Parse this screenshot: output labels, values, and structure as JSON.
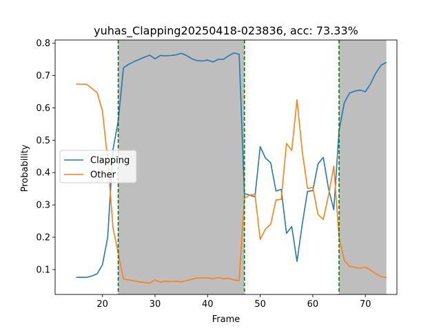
{
  "chart_data": {
    "type": "line",
    "title": "yuhas_Clapping20250418-023836,  acc: 73.33%",
    "xlabel": "Frame",
    "ylabel": "Probability",
    "xlim": [
      11,
      76
    ],
    "ylim": [
      0.023,
      0.81
    ],
    "xticks": [
      "20",
      "30",
      "40",
      "50",
      "60",
      "70"
    ],
    "yticks": [
      "0.1",
      "0.2",
      "0.3",
      "0.4",
      "0.5",
      "0.6",
      "0.7",
      "0.8"
    ],
    "legend_placement": "center-left",
    "shaded_regions": [
      [
        23,
        47
      ],
      [
        65,
        74
      ]
    ],
    "boundary_lines": [
      23,
      47,
      65
    ],
    "shade_color": "#bebebe",
    "boundary_color": "#007500",
    "x": [
      15,
      16,
      17,
      18,
      19,
      20,
      21,
      22,
      23,
      24,
      25,
      26,
      27,
      28,
      29,
      30,
      31,
      32,
      33,
      34,
      35,
      36,
      37,
      38,
      39,
      40,
      41,
      42,
      43,
      44,
      45,
      46,
      47,
      48,
      49,
      50,
      51,
      52,
      53,
      54,
      55,
      56,
      57,
      58,
      59,
      60,
      61,
      62,
      63,
      64,
      65,
      66,
      67,
      68,
      69,
      70,
      71,
      72,
      73,
      74
    ],
    "series": [
      {
        "name": "Clapping",
        "color": "#1f77b4",
        "values": [
          0.076,
          0.076,
          0.076,
          0.08,
          0.087,
          0.115,
          0.2,
          0.47,
          0.56,
          0.724,
          0.735,
          0.743,
          0.75,
          0.757,
          0.763,
          0.752,
          0.762,
          0.761,
          0.762,
          0.764,
          0.769,
          0.762,
          0.752,
          0.746,
          0.745,
          0.748,
          0.742,
          0.75,
          0.75,
          0.761,
          0.77,
          0.766,
          0.335,
          0.33,
          0.325,
          0.48,
          0.445,
          0.43,
          0.343,
          0.348,
          0.212,
          0.233,
          0.125,
          0.24,
          0.342,
          0.344,
          0.427,
          0.447,
          0.35,
          0.285,
          0.53,
          0.616,
          0.646,
          0.652,
          0.655,
          0.65,
          0.675,
          0.708,
          0.732,
          0.741
        ]
      },
      {
        "name": "Other",
        "color": "#ff7f0e",
        "values": [
          0.674,
          0.673,
          0.673,
          0.66,
          0.647,
          0.59,
          0.44,
          0.23,
          0.15,
          0.071,
          0.068,
          0.065,
          0.062,
          0.06,
          0.058,
          0.068,
          0.061,
          0.064,
          0.063,
          0.064,
          0.062,
          0.066,
          0.07,
          0.074,
          0.074,
          0.074,
          0.072,
          0.075,
          0.072,
          0.073,
          0.068,
          0.066,
          0.32,
          0.33,
          0.333,
          0.193,
          0.225,
          0.24,
          0.315,
          0.317,
          0.49,
          0.468,
          0.625,
          0.465,
          0.351,
          0.354,
          0.27,
          0.255,
          0.33,
          0.42,
          0.2,
          0.128,
          0.11,
          0.107,
          0.104,
          0.108,
          0.098,
          0.087,
          0.078,
          0.075
        ]
      }
    ]
  }
}
